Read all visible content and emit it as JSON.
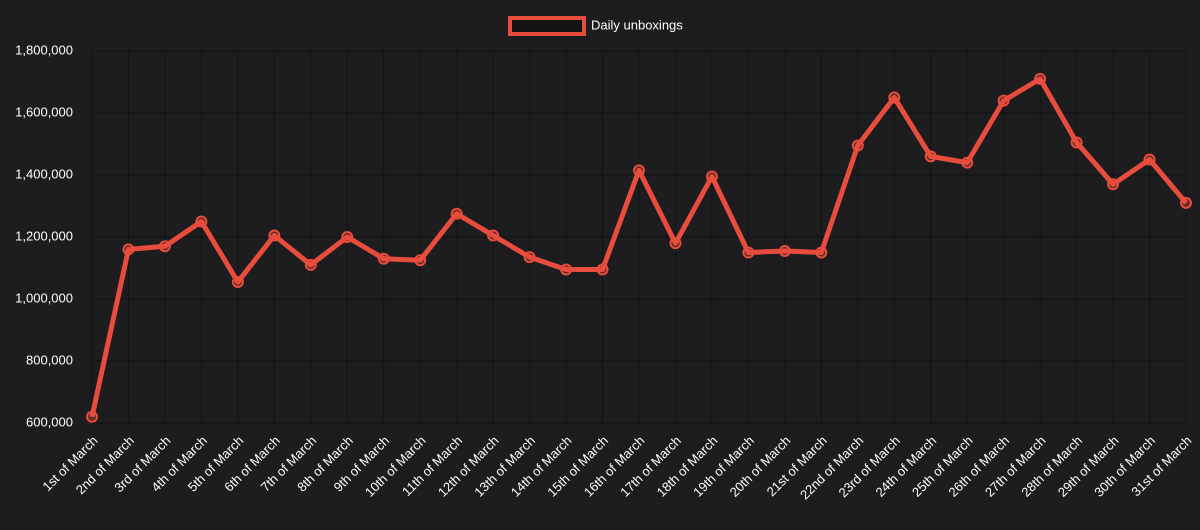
{
  "chart_data": {
    "type": "line",
    "categories": [
      "1st of March",
      "2nd of March",
      "3rd of March",
      "4th of March",
      "5th of March",
      "6th of March",
      "7th of March",
      "8th of March",
      "9th of March",
      "10th of March",
      "11th of March",
      "12th of March",
      "13th of March",
      "14th of March",
      "15th of March",
      "16th of March",
      "17th of March",
      "18th of March",
      "19th of March",
      "20th of March",
      "21st of March",
      "22nd of March",
      "23rd of March",
      "24th of March",
      "25th of March",
      "26th of March",
      "27th of March",
      "28th of March",
      "29th of March",
      "30th of March",
      "31st of March"
    ],
    "series": [
      {
        "name": "Daily unboxings",
        "color": "#e74c3c",
        "values": [
          620000,
          1160000,
          1170000,
          1250000,
          1055000,
          1205000,
          1110000,
          1200000,
          1130000,
          1125000,
          1275000,
          1205000,
          1135000,
          1095000,
          1095000,
          1415000,
          1180000,
          1395000,
          1150000,
          1155000,
          1150000,
          1495000,
          1650000,
          1460000,
          1440000,
          1640000,
          1710000,
          1505000,
          1370000,
          1450000,
          1310000
        ]
      }
    ],
    "ylim": [
      600000,
      1800000
    ],
    "yticks": [
      {
        "value": 600000,
        "label": "600,000"
      },
      {
        "value": 800000,
        "label": "800,000"
      },
      {
        "value": 1000000,
        "label": "1,000,000"
      },
      {
        "value": 1200000,
        "label": "1,200,000"
      },
      {
        "value": 1400000,
        "label": "1,400,000"
      },
      {
        "value": 1600000,
        "label": "1,600,000"
      },
      {
        "value": 1800000,
        "label": "1,800,000"
      }
    ],
    "grid": true,
    "legend": "top"
  }
}
